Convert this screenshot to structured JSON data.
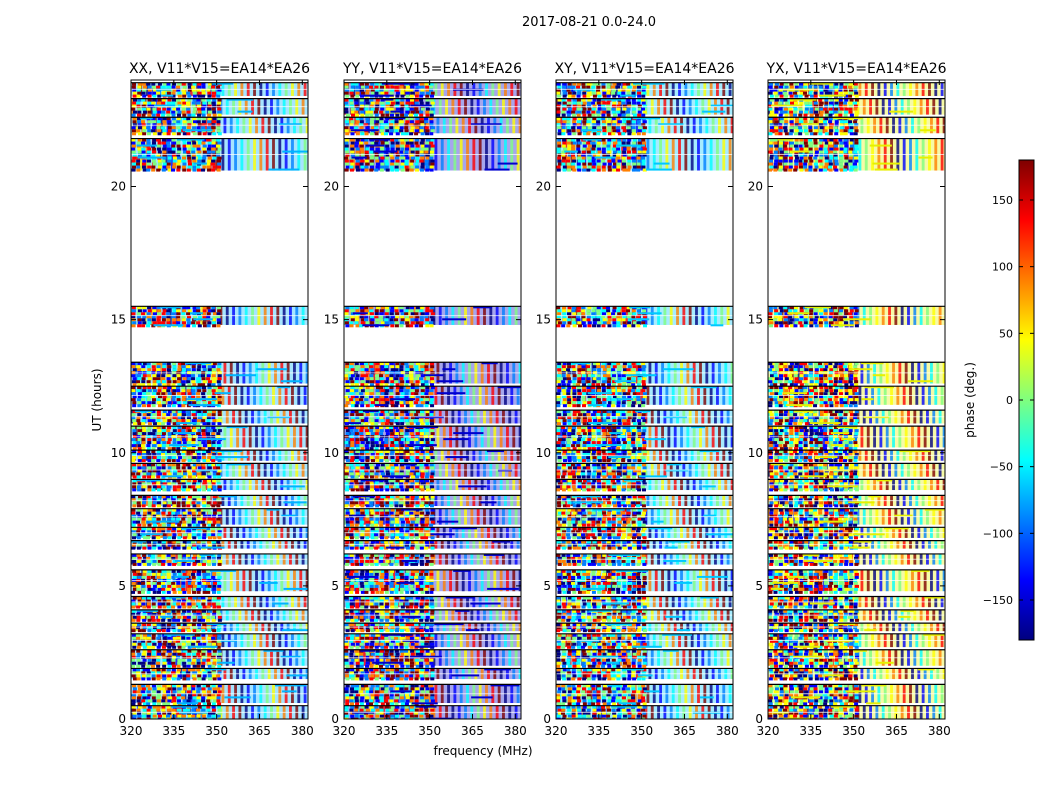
{
  "chart_data": {
    "type": "heatmap",
    "suptitle": "2017-08-21 0.0-24.0",
    "xlabel": "frequency (MHz)",
    "ylabel": "UT (hours)",
    "xticks": [
      320,
      335,
      350,
      365,
      380
    ],
    "yticks": [
      0,
      5,
      10,
      15,
      20
    ],
    "xlim": [
      320,
      382
    ],
    "ylim": [
      0,
      24
    ],
    "colorbar": {
      "label": "phase (deg.)",
      "range": [
        -180,
        180
      ],
      "ticks": [
        -150,
        -100,
        -50,
        0,
        50,
        100,
        150
      ],
      "colors": [
        "#00007f",
        "#0000ff",
        "#007fff",
        "#00ffff",
        "#7fff7f",
        "#ffff00",
        "#ff7f00",
        "#ff0000",
        "#7f0000"
      ]
    },
    "panels": [
      {
        "title": "XX, V11*V15=EA14*EA26",
        "dominant": "#00b4ff"
      },
      {
        "title": "YY, V11*V15=EA14*EA26",
        "dominant": "#0000cc"
      },
      {
        "title": "XY, V11*V15=EA14*EA26",
        "dominant": "#00c8ff"
      },
      {
        "title": "YX, V11*V15=EA14*EA26",
        "dominant": "#e6f000"
      }
    ],
    "data_ranges_hours": [
      [
        0.0,
        0.5
      ],
      [
        0.6,
        1.3
      ],
      [
        1.5,
        1.9
      ],
      [
        2.0,
        2.6
      ],
      [
        2.7,
        3.2
      ],
      [
        3.3,
        3.6
      ],
      [
        3.7,
        4.1
      ],
      [
        4.2,
        4.6
      ],
      [
        4.8,
        5.6
      ],
      [
        5.8,
        6.2
      ],
      [
        6.4,
        6.7
      ],
      [
        6.8,
        7.2
      ],
      [
        7.3,
        7.9
      ],
      [
        8.0,
        8.4
      ],
      [
        8.6,
        9.0
      ],
      [
        9.1,
        9.6
      ],
      [
        9.7,
        10.1
      ],
      [
        10.2,
        11.0
      ],
      [
        11.1,
        11.6
      ],
      [
        11.8,
        12.5
      ],
      [
        12.6,
        13.4
      ],
      [
        14.8,
        15.5
      ],
      [
        20.6,
        21.8
      ],
      [
        22.0,
        22.6
      ],
      [
        22.7,
        23.3
      ],
      [
        23.4,
        23.9
      ]
    ]
  }
}
